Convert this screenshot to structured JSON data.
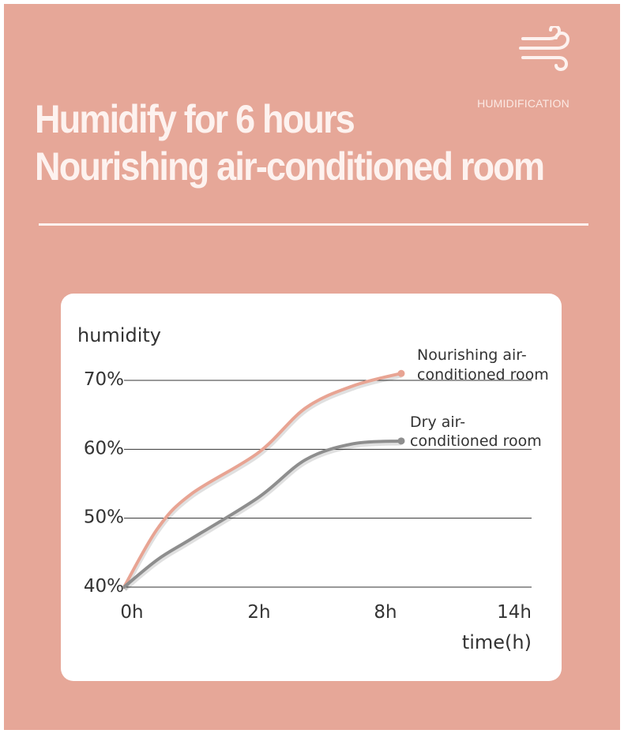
{
  "header": {
    "icon": "wind-icon",
    "sub_label": "HUMIDIFICATION",
    "title_line1": "Humidify for 6 hours",
    "title_line2": "Nourishing air-conditioned room"
  },
  "colors": {
    "background": "#e6a798",
    "heading_text": "#fdf2ef",
    "series_nourishing": "#e8a493",
    "series_dry": "#8e8e8e"
  },
  "chart_data": {
    "type": "line",
    "ylabel": "humidity",
    "xlabel": "time(h)",
    "x_ticks": [
      "0h",
      "2h",
      "8h",
      "14h"
    ],
    "y_ticks": [
      "40%",
      "50%",
      "60%",
      "70%"
    ],
    "ylim": [
      40,
      70
    ],
    "grid": true,
    "series": [
      {
        "name_line1": "Nourishing air-",
        "name_line2": "conditioned room",
        "color": "#e8a493",
        "points": [
          [
            0,
            40
          ],
          [
            0.5,
            48.5
          ],
          [
            1,
            53.5
          ],
          [
            2,
            59.5
          ],
          [
            4,
            66
          ],
          [
            6,
            69.2
          ],
          [
            8,
            71
          ]
        ]
      },
      {
        "name_line1": "Dry air-",
        "name_line2": "conditioned room",
        "color": "#8e8e8e",
        "points": [
          [
            0,
            40
          ],
          [
            0.5,
            44
          ],
          [
            1,
            47
          ],
          [
            2,
            53
          ],
          [
            4,
            58.5
          ],
          [
            6,
            60.8
          ],
          [
            8,
            61.2
          ]
        ]
      }
    ]
  }
}
